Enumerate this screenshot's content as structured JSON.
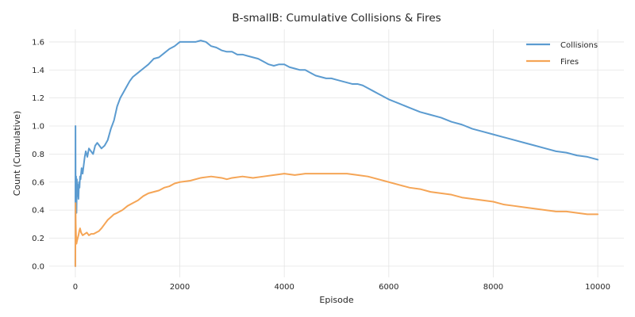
{
  "chart_data": {
    "type": "line",
    "title": "B-smallB: Cumulative Collisions & Fires",
    "xlabel": "Episode",
    "ylabel": "Count (Cumulative)",
    "xlim": [
      -500,
      10500
    ],
    "ylim": [
      -0.08,
      1.69
    ],
    "xticks": [
      0,
      2000,
      4000,
      6000,
      8000,
      10000
    ],
    "xtick_labels": [
      "0",
      "2000",
      "4000",
      "6000",
      "8000",
      "10000"
    ],
    "yticks": [
      0.0,
      0.2,
      0.4,
      0.6,
      0.8,
      1.0,
      1.2,
      1.4,
      1.6
    ],
    "ytick_labels": [
      "0.0",
      "0.2",
      "0.4",
      "0.6",
      "0.8",
      "1.0",
      "1.2",
      "1.4",
      "1.6"
    ],
    "grid": true,
    "legend_position": "top-right",
    "series": [
      {
        "name": "Collisions",
        "color": "#5b9bd0",
        "points": [
          [
            0,
            0.0
          ],
          [
            3,
            1.0
          ],
          [
            6,
            0.5
          ],
          [
            10,
            0.42
          ],
          [
            15,
            0.64
          ],
          [
            22,
            0.38
          ],
          [
            30,
            0.62
          ],
          [
            40,
            0.5
          ],
          [
            50,
            0.58
          ],
          [
            60,
            0.48
          ],
          [
            70,
            0.6
          ],
          [
            80,
            0.56
          ],
          [
            90,
            0.64
          ],
          [
            100,
            0.62
          ],
          [
            120,
            0.7
          ],
          [
            140,
            0.66
          ],
          [
            160,
            0.72
          ],
          [
            180,
            0.78
          ],
          [
            200,
            0.82
          ],
          [
            230,
            0.78
          ],
          [
            260,
            0.84
          ],
          [
            300,
            0.82
          ],
          [
            340,
            0.8
          ],
          [
            380,
            0.86
          ],
          [
            420,
            0.88
          ],
          [
            460,
            0.86
          ],
          [
            500,
            0.84
          ],
          [
            560,
            0.86
          ],
          [
            620,
            0.9
          ],
          [
            680,
            0.98
          ],
          [
            740,
            1.04
          ],
          [
            800,
            1.14
          ],
          [
            860,
            1.2
          ],
          [
            920,
            1.24
          ],
          [
            980,
            1.28
          ],
          [
            1040,
            1.32
          ],
          [
            1100,
            1.35
          ],
          [
            1200,
            1.38
          ],
          [
            1300,
            1.41
          ],
          [
            1400,
            1.44
          ],
          [
            1500,
            1.48
          ],
          [
            1600,
            1.49
          ],
          [
            1700,
            1.52
          ],
          [
            1800,
            1.55
          ],
          [
            1900,
            1.57
          ],
          [
            2000,
            1.6
          ],
          [
            2100,
            1.6
          ],
          [
            2200,
            1.6
          ],
          [
            2300,
            1.6
          ],
          [
            2400,
            1.61
          ],
          [
            2500,
            1.6
          ],
          [
            2600,
            1.57
          ],
          [
            2700,
            1.56
          ],
          [
            2800,
            1.54
          ],
          [
            2900,
            1.53
          ],
          [
            3000,
            1.53
          ],
          [
            3100,
            1.51
          ],
          [
            3200,
            1.51
          ],
          [
            3300,
            1.5
          ],
          [
            3400,
            1.49
          ],
          [
            3500,
            1.48
          ],
          [
            3600,
            1.46
          ],
          [
            3700,
            1.44
          ],
          [
            3800,
            1.43
          ],
          [
            3900,
            1.44
          ],
          [
            4000,
            1.44
          ],
          [
            4100,
            1.42
          ],
          [
            4200,
            1.41
          ],
          [
            4300,
            1.4
          ],
          [
            4400,
            1.4
          ],
          [
            4500,
            1.38
          ],
          [
            4600,
            1.36
          ],
          [
            4700,
            1.35
          ],
          [
            4800,
            1.34
          ],
          [
            4900,
            1.34
          ],
          [
            5000,
            1.33
          ],
          [
            5100,
            1.32
          ],
          [
            5200,
            1.31
          ],
          [
            5300,
            1.3
          ],
          [
            5400,
            1.3
          ],
          [
            5500,
            1.29
          ],
          [
            5600,
            1.27
          ],
          [
            5700,
            1.25
          ],
          [
            5800,
            1.23
          ],
          [
            5900,
            1.21
          ],
          [
            6000,
            1.19
          ],
          [
            6200,
            1.16
          ],
          [
            6400,
            1.13
          ],
          [
            6600,
            1.1
          ],
          [
            6800,
            1.08
          ],
          [
            7000,
            1.06
          ],
          [
            7200,
            1.03
          ],
          [
            7400,
            1.01
          ],
          [
            7600,
            0.98
          ],
          [
            7800,
            0.96
          ],
          [
            8000,
            0.94
          ],
          [
            8200,
            0.92
          ],
          [
            8400,
            0.9
          ],
          [
            8600,
            0.88
          ],
          [
            8800,
            0.86
          ],
          [
            9000,
            0.84
          ],
          [
            9200,
            0.82
          ],
          [
            9400,
            0.81
          ],
          [
            9600,
            0.79
          ],
          [
            9800,
            0.78
          ],
          [
            10000,
            0.76
          ]
        ]
      },
      {
        "name": "Fires",
        "color": "#f5a556",
        "points": [
          [
            0,
            0.0
          ],
          [
            4,
            0.45
          ],
          [
            8,
            0.3
          ],
          [
            14,
            0.22
          ],
          [
            22,
            0.16
          ],
          [
            32,
            0.18
          ],
          [
            45,
            0.2
          ],
          [
            60,
            0.22
          ],
          [
            75,
            0.25
          ],
          [
            90,
            0.27
          ],
          [
            110,
            0.24
          ],
          [
            140,
            0.22
          ],
          [
            180,
            0.23
          ],
          [
            220,
            0.24
          ],
          [
            260,
            0.22
          ],
          [
            300,
            0.23
          ],
          [
            350,
            0.23
          ],
          [
            400,
            0.24
          ],
          [
            450,
            0.25
          ],
          [
            500,
            0.27
          ],
          [
            560,
            0.3
          ],
          [
            620,
            0.33
          ],
          [
            680,
            0.35
          ],
          [
            740,
            0.37
          ],
          [
            800,
            0.38
          ],
          [
            900,
            0.4
          ],
          [
            1000,
            0.43
          ],
          [
            1100,
            0.45
          ],
          [
            1200,
            0.47
          ],
          [
            1300,
            0.5
          ],
          [
            1400,
            0.52
          ],
          [
            1500,
            0.53
          ],
          [
            1600,
            0.54
          ],
          [
            1700,
            0.56
          ],
          [
            1800,
            0.57
          ],
          [
            1900,
            0.59
          ],
          [
            2000,
            0.6
          ],
          [
            2200,
            0.61
          ],
          [
            2400,
            0.63
          ],
          [
            2600,
            0.64
          ],
          [
            2800,
            0.63
          ],
          [
            2900,
            0.62
          ],
          [
            3000,
            0.63
          ],
          [
            3200,
            0.64
          ],
          [
            3400,
            0.63
          ],
          [
            3600,
            0.64
          ],
          [
            3800,
            0.65
          ],
          [
            4000,
            0.66
          ],
          [
            4200,
            0.65
          ],
          [
            4400,
            0.66
          ],
          [
            4600,
            0.66
          ],
          [
            4800,
            0.66
          ],
          [
            5000,
            0.66
          ],
          [
            5200,
            0.66
          ],
          [
            5400,
            0.65
          ],
          [
            5600,
            0.64
          ],
          [
            5800,
            0.62
          ],
          [
            6000,
            0.6
          ],
          [
            6200,
            0.58
          ],
          [
            6400,
            0.56
          ],
          [
            6600,
            0.55
          ],
          [
            6800,
            0.53
          ],
          [
            7000,
            0.52
          ],
          [
            7200,
            0.51
          ],
          [
            7400,
            0.49
          ],
          [
            7600,
            0.48
          ],
          [
            7800,
            0.47
          ],
          [
            8000,
            0.46
          ],
          [
            8200,
            0.44
          ],
          [
            8400,
            0.43
          ],
          [
            8600,
            0.42
          ],
          [
            8800,
            0.41
          ],
          [
            9000,
            0.4
          ],
          [
            9200,
            0.39
          ],
          [
            9400,
            0.39
          ],
          [
            9600,
            0.38
          ],
          [
            9800,
            0.37
          ],
          [
            10000,
            0.37
          ]
        ]
      }
    ]
  }
}
